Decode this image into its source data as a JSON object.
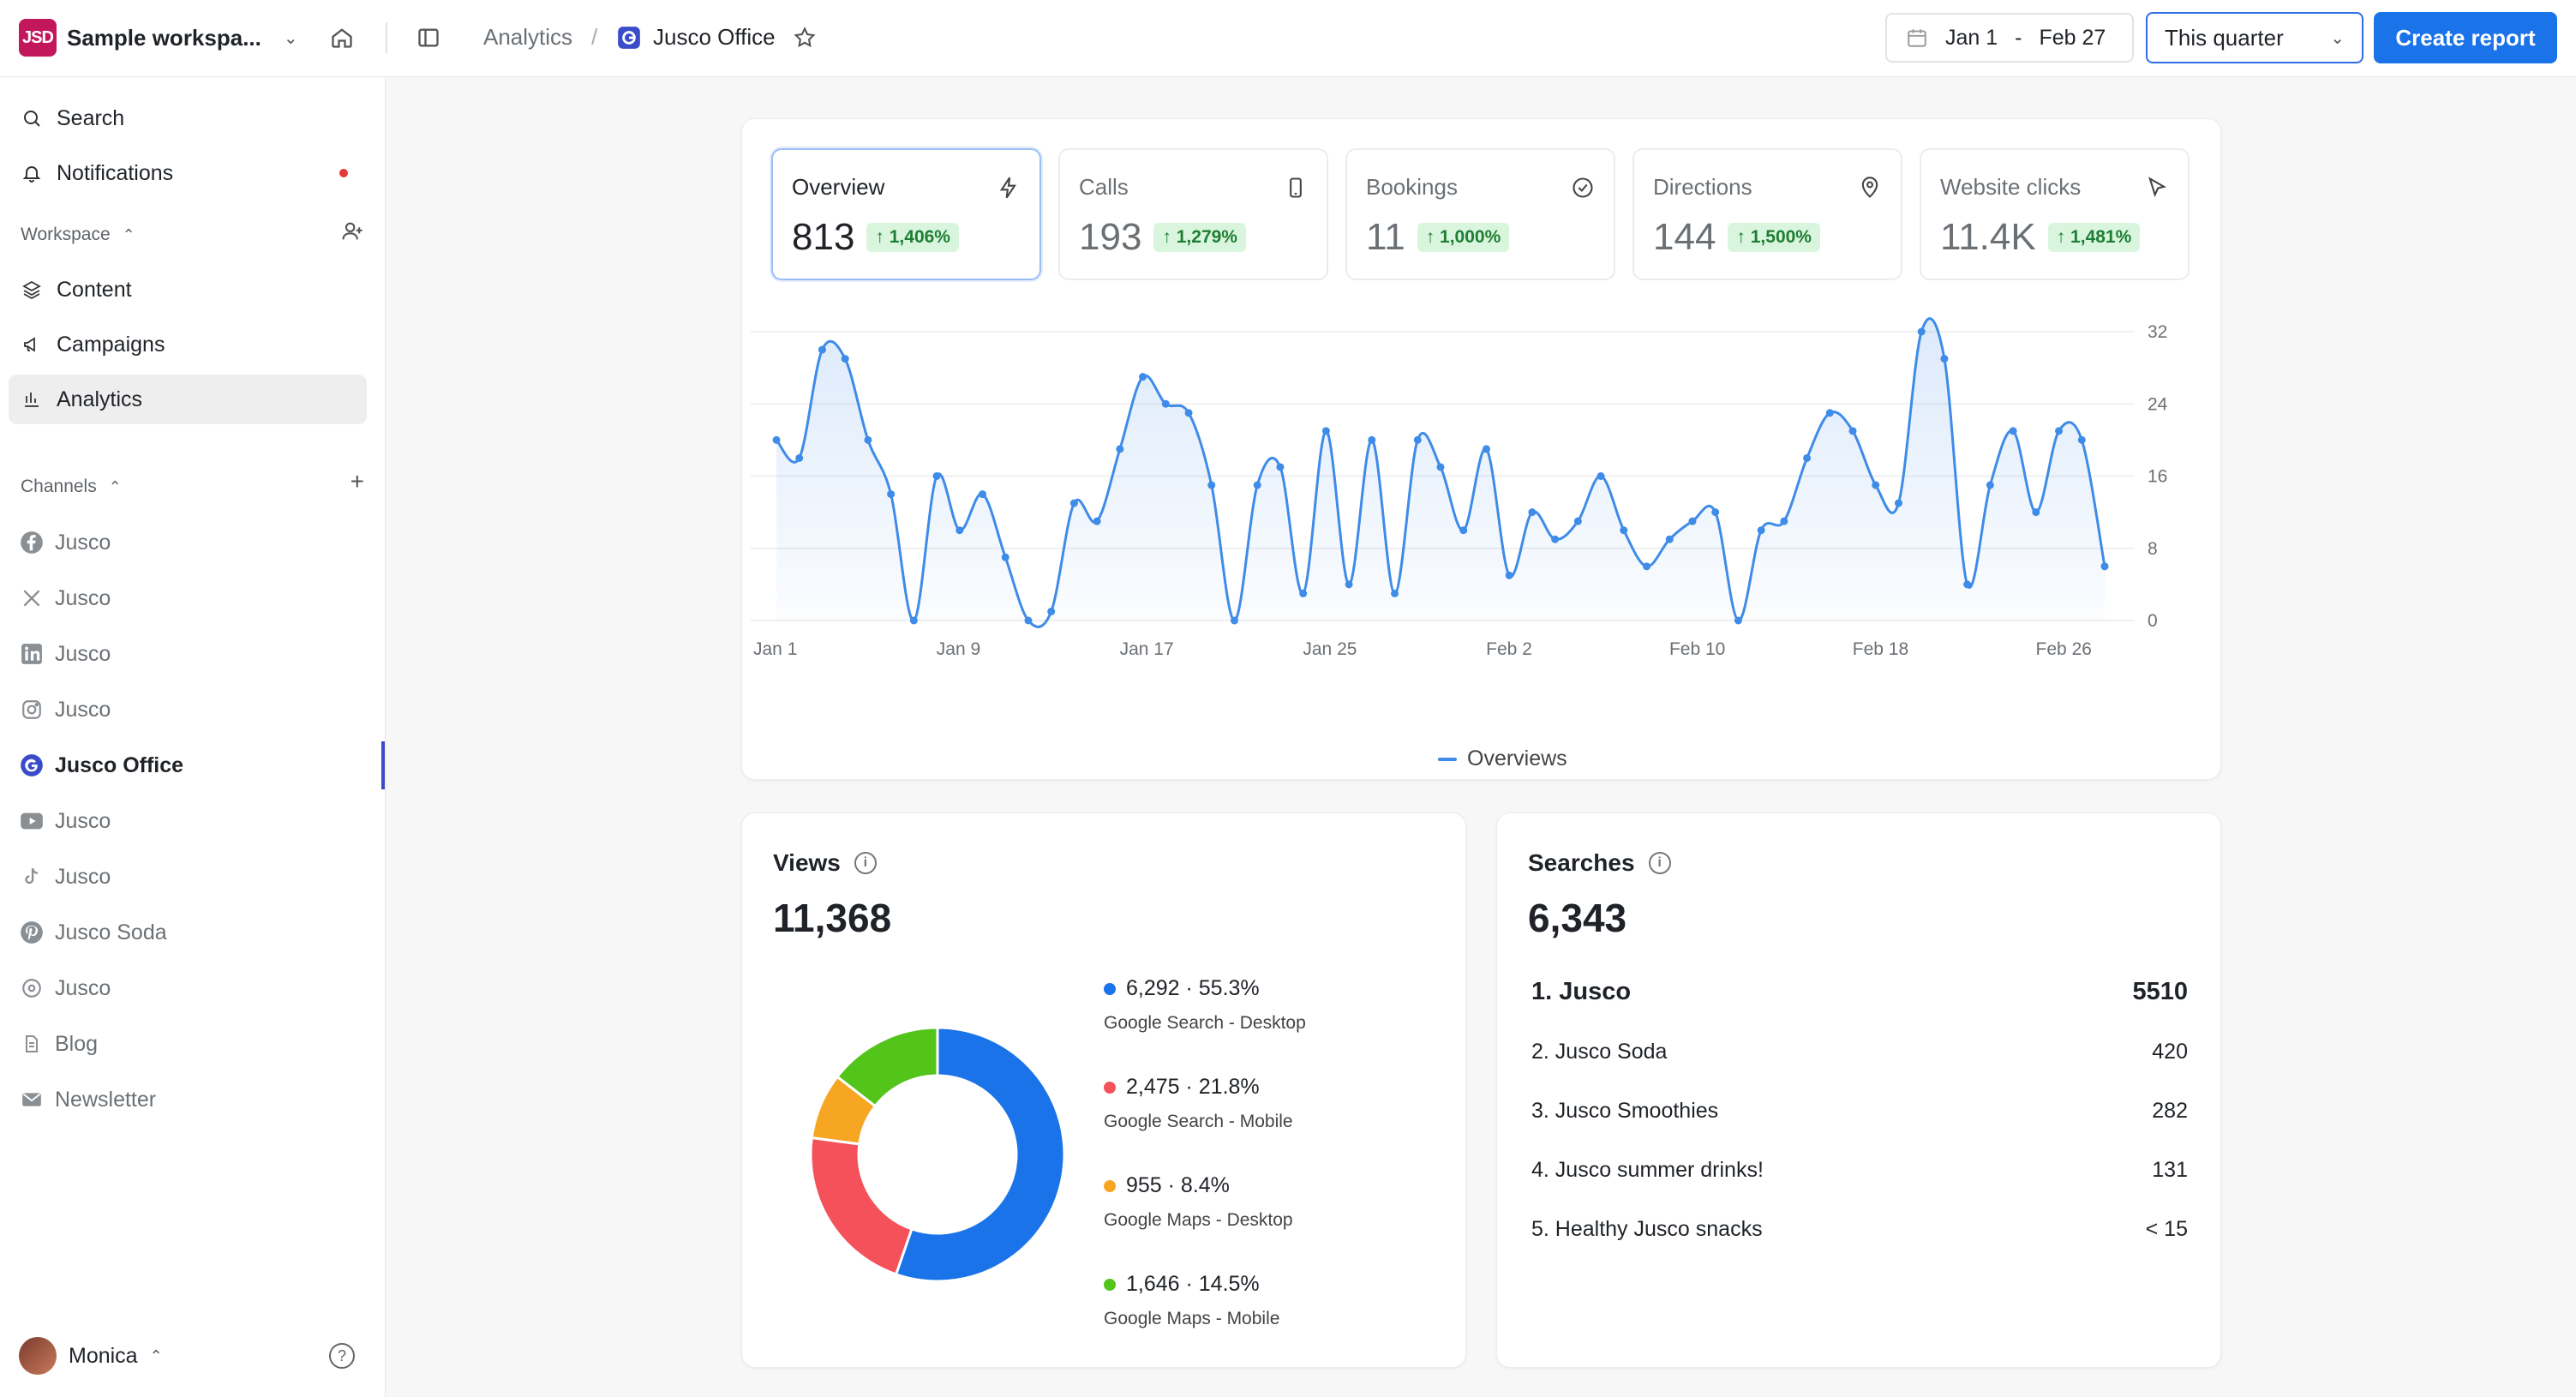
{
  "workspace": {
    "logo_text": "JSD",
    "name": "Sample workspa...",
    "logo_color": "#c2185b"
  },
  "nav": {
    "search": "Search",
    "notifications": "Notifications",
    "notification_dot_color": "#e53935"
  },
  "workspace_section": {
    "label": "Workspace",
    "items": [
      {
        "label": "Content",
        "icon": "layers-icon"
      },
      {
        "label": "Campaigns",
        "icon": "megaphone-icon"
      },
      {
        "label": "Analytics",
        "icon": "bar-chart-icon",
        "active": true
      }
    ]
  },
  "channels_section": {
    "label": "Channels",
    "items": [
      {
        "label": "Jusco",
        "icon": "facebook-icon"
      },
      {
        "label": "Jusco",
        "icon": "x-icon"
      },
      {
        "label": "Jusco",
        "icon": "linkedin-icon"
      },
      {
        "label": "Jusco",
        "icon": "instagram-icon"
      },
      {
        "label": "Jusco Office",
        "icon": "google-icon",
        "active": true
      },
      {
        "label": "Jusco",
        "icon": "youtube-icon"
      },
      {
        "label": "Jusco",
        "icon": "tiktok-icon"
      },
      {
        "label": "Jusco Soda",
        "icon": "pinterest-icon"
      },
      {
        "label": "Jusco",
        "icon": "threads-icon"
      },
      {
        "label": "Blog",
        "icon": "document-icon"
      },
      {
        "label": "Newsletter",
        "icon": "mail-icon"
      }
    ]
  },
  "user": {
    "name": "Monica"
  },
  "breadcrumb": {
    "parent": "Analytics",
    "separator": "/",
    "current": "Jusco Office"
  },
  "date_range": {
    "start": "Jan 1",
    "dash": "-",
    "end": "Feb 27"
  },
  "period_select": {
    "value": "This quarter"
  },
  "create_report_label": "Create report",
  "accent_color": "#1a73e8",
  "metrics": [
    {
      "label": "Overview",
      "value": "813",
      "change": "↑ 1,406%",
      "icon": "lightning-icon",
      "active": true
    },
    {
      "label": "Calls",
      "value": "193",
      "change": "↑ 1,279%",
      "icon": "phone-icon"
    },
    {
      "label": "Bookings",
      "value": "11",
      "change": "↑ 1,000%",
      "icon": "check-circle-icon"
    },
    {
      "label": "Directions",
      "value": "144",
      "change": "↑ 1,500%",
      "icon": "map-pin-icon"
    },
    {
      "label": "Website clicks",
      "value": "11.4K",
      "change": "↑ 1,481%",
      "icon": "cursor-icon"
    }
  ],
  "chart_data": {
    "type": "area",
    "series": [
      {
        "name": "Overviews",
        "color": "#3f8be8",
        "values": [
          20,
          18,
          30,
          29,
          20,
          14,
          0,
          16,
          10,
          14,
          7,
          0,
          1,
          13,
          11,
          19,
          27,
          24,
          23,
          15,
          0,
          15,
          17,
          3,
          21,
          4,
          20,
          3,
          20,
          17,
          10,
          19,
          5,
          12,
          9,
          11,
          16,
          10,
          6,
          9,
          11,
          12,
          0,
          10,
          11,
          18,
          23,
          21,
          15,
          13,
          32,
          29,
          4,
          15,
          21,
          12,
          21,
          20,
          6
        ]
      }
    ],
    "x_tick_labels": [
      "Jan 1",
      "Jan 9",
      "Jan 17",
      "Jan 25",
      "Feb 2",
      "Feb 10",
      "Feb 18",
      "Feb 26"
    ],
    "y_ticks": [
      0,
      8,
      16,
      24,
      32
    ],
    "ylim": [
      0,
      32
    ],
    "grid": true,
    "legend_position": "bottom-center"
  },
  "views": {
    "title": "Views",
    "total": "11,368",
    "segments": [
      {
        "value_label": "6,292 · 55.3%",
        "source": "Google Search - Desktop",
        "percent": 55.3,
        "color": "#1a73e8"
      },
      {
        "value_label": "2,475 · 21.8%",
        "source": "Google Search - Mobile",
        "percent": 21.8,
        "color": "#f4515a"
      },
      {
        "value_label": "955 · 8.4%",
        "source": "Google Maps - Desktop",
        "percent": 8.4,
        "color": "#f6a623"
      },
      {
        "value_label": "1,646 · 14.5%",
        "source": "Google Maps - Mobile",
        "percent": 14.5,
        "color": "#52c41a"
      }
    ]
  },
  "searches": {
    "title": "Searches",
    "total": "6,343",
    "rows": [
      {
        "term": "1. Jusco",
        "count": "5510"
      },
      {
        "term": "2. Jusco Soda",
        "count": "420"
      },
      {
        "term": "3. Jusco Smoothies",
        "count": "282"
      },
      {
        "term": "4. Jusco summer drinks!",
        "count": "131"
      },
      {
        "term": "5. Healthy Jusco snacks",
        "count": "< 15"
      }
    ]
  }
}
